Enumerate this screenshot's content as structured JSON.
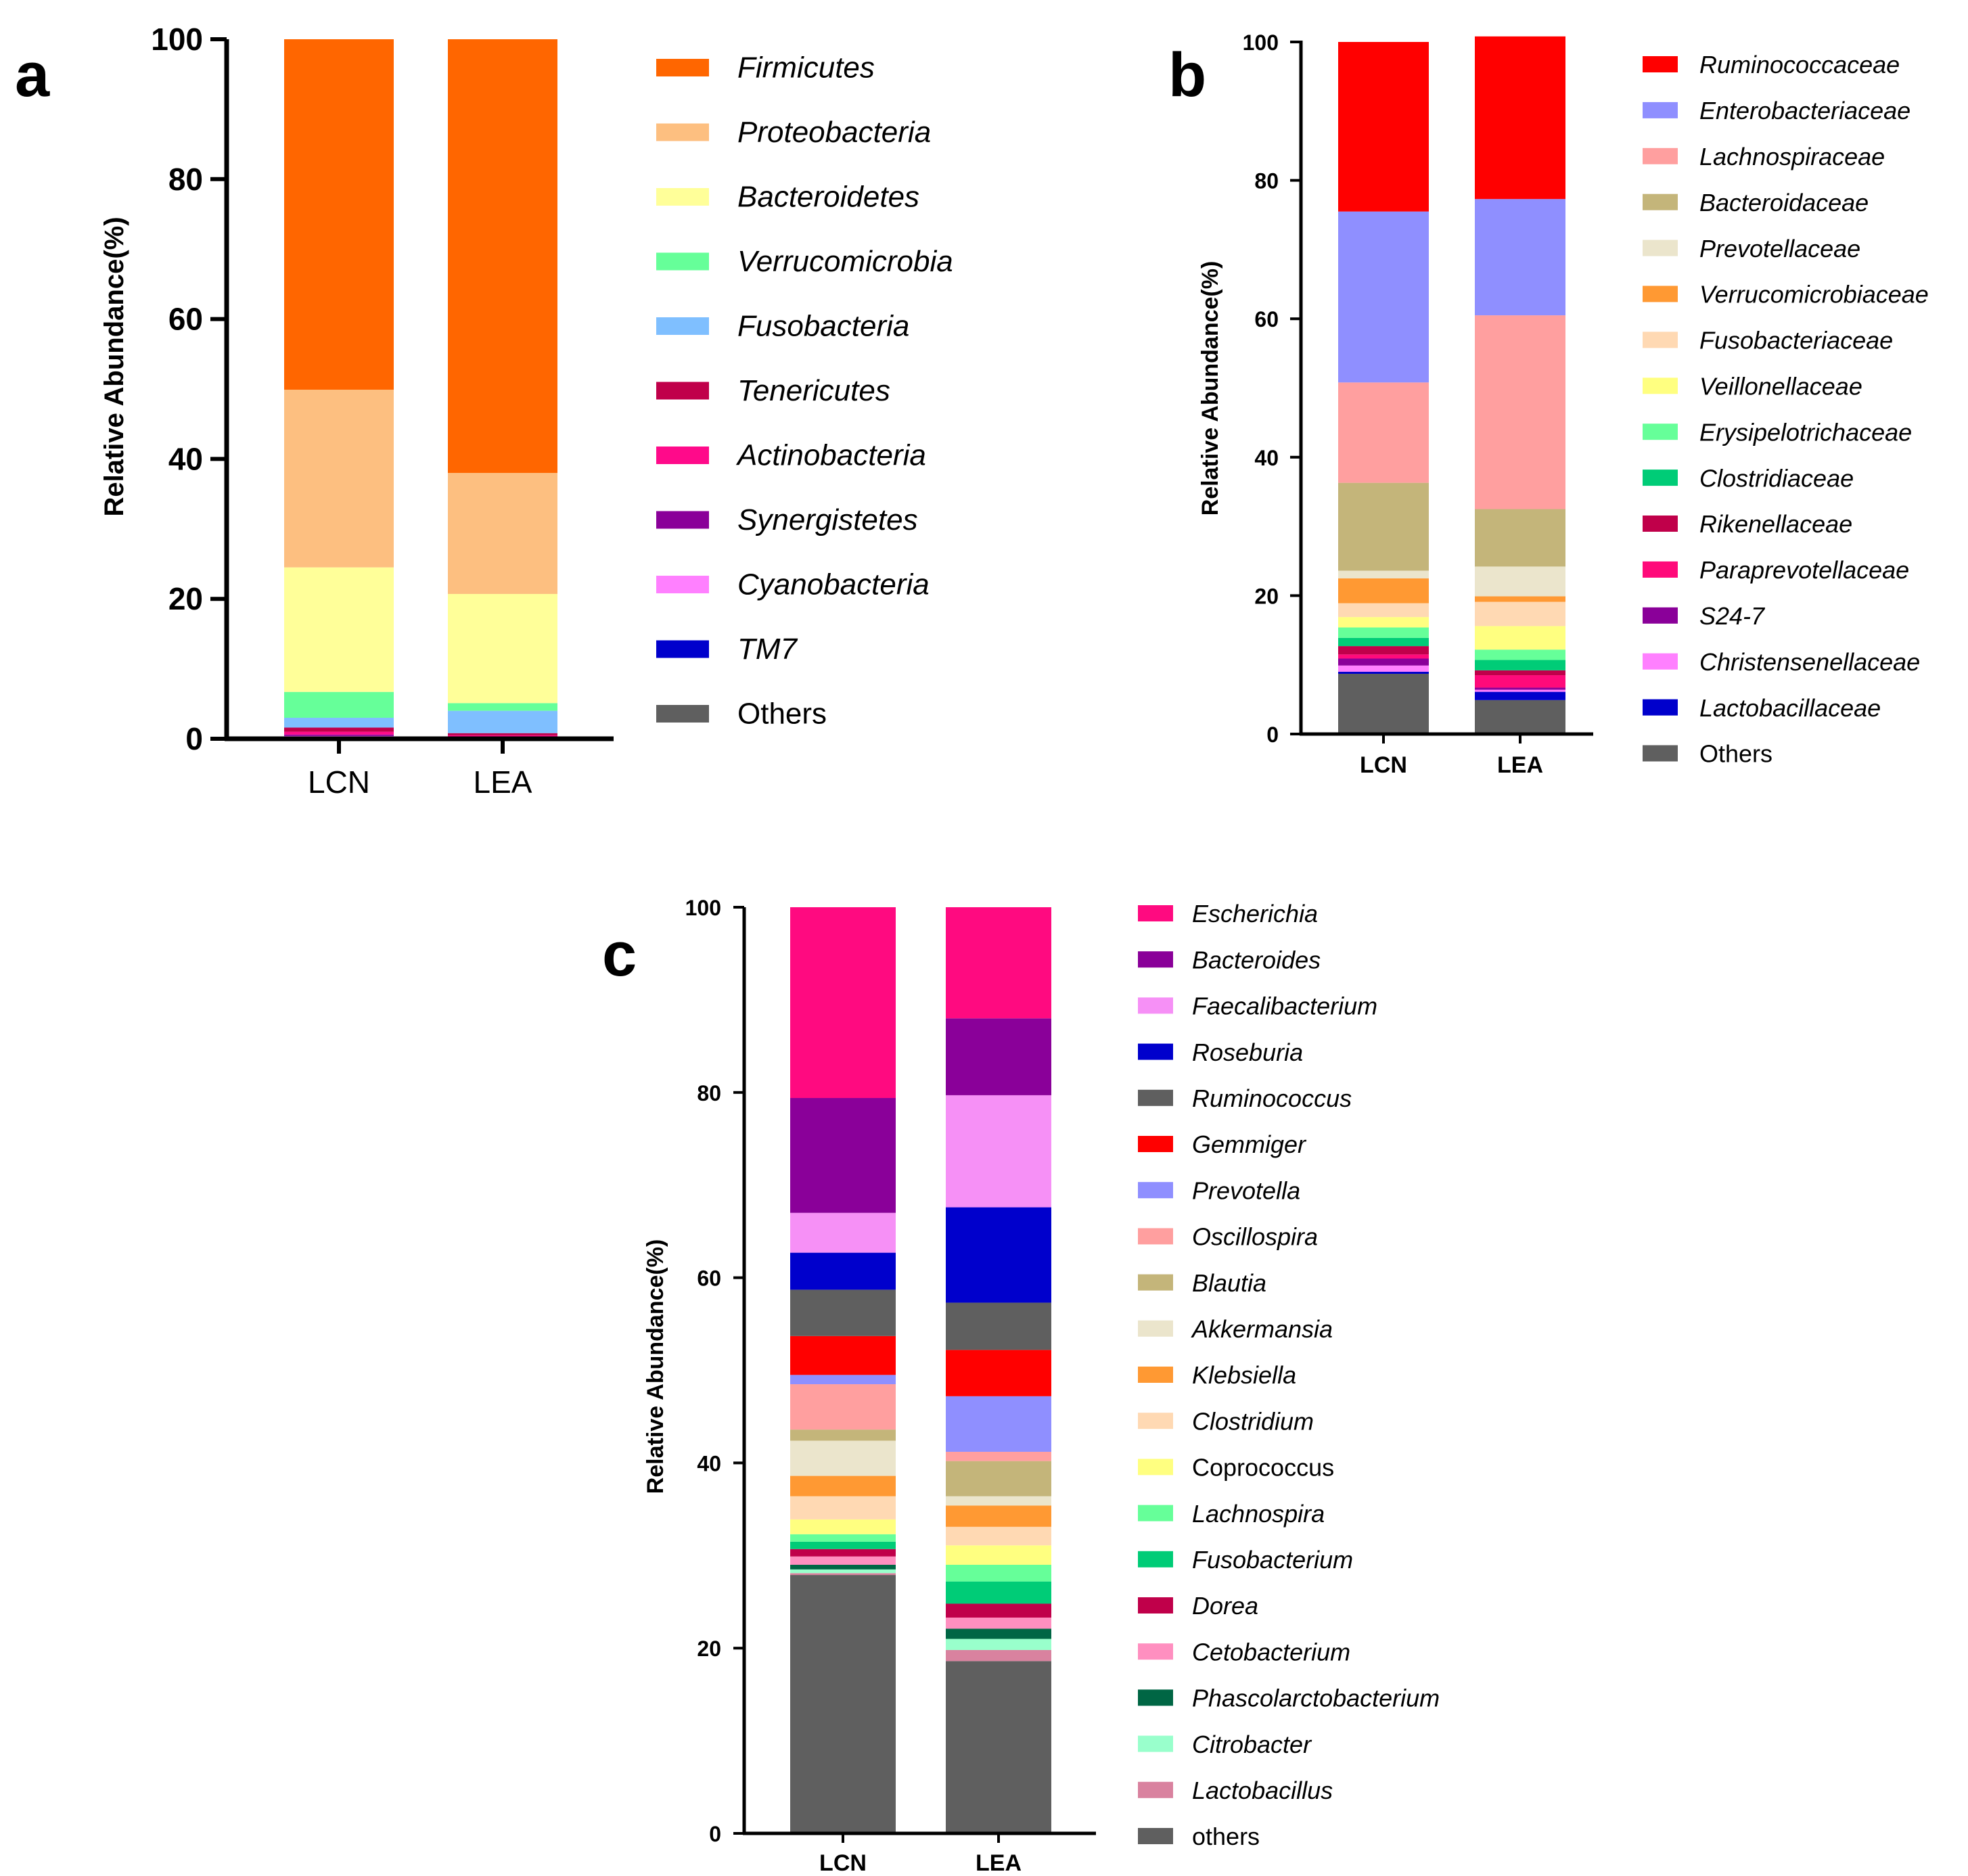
{
  "colors": {
    "axis": "#000000",
    "panel_a": [
      "#ff6600",
      "#fdbf80",
      "#ffff99",
      "#66ff99",
      "#7fbfff",
      "#c0004a",
      "#ff0a8a",
      "#8a0099",
      "#ff80ff",
      "#0000cc",
      "#5f5f5f"
    ],
    "panel_b": [
      "#ff0000",
      "#8f8fff",
      "#ff9f9f",
      "#c4b57a",
      "#ebe5cc",
      "#ff9933",
      "#ffd9b3",
      "#ffff80",
      "#66ff99",
      "#00cc77",
      "#c0004a",
      "#ff0a7a",
      "#8a0099",
      "#ff80ff",
      "#0000cc",
      "#5f5f5f"
    ],
    "panel_c": [
      "#ff0a80",
      "#8a0099",
      "#f690f6",
      "#0000cc",
      "#5f5f5f",
      "#ff0000",
      "#8f8fff",
      "#ff9f9f",
      "#c4b57a",
      "#ebe5cc",
      "#ff9933",
      "#ffd9b3",
      "#ffff80",
      "#66ff99",
      "#00cc77",
      "#c0004a",
      "#ff8fc0",
      "#006644",
      "#99ffcc",
      "#d9829f",
      "#5f5f5f"
    ]
  },
  "chart_data": [
    {
      "panel": "a",
      "type": "bar",
      "stacked": true,
      "ylabel": "Relative Abundance(%)",
      "ylim": [
        0,
        100
      ],
      "yticks": [
        "0",
        "20",
        "40",
        "60",
        "80",
        "100"
      ],
      "categories": [
        "LCN",
        "LEA"
      ],
      "legend_italic": [
        true,
        true,
        true,
        true,
        true,
        true,
        true,
        true,
        true,
        true,
        false
      ],
      "series": [
        {
          "name": "Firmicutes",
          "values": [
            50.1,
            62.0
          ]
        },
        {
          "name": "Proteobacteria",
          "values": [
            25.4,
            17.3
          ]
        },
        {
          "name": "Bacteroidetes",
          "values": [
            17.8,
            15.6
          ]
        },
        {
          "name": "Verrucomicrobia",
          "values": [
            3.7,
            1.1
          ]
        },
        {
          "name": "Fusobacteria",
          "values": [
            1.4,
            3.2
          ]
        },
        {
          "name": "Tenericutes",
          "values": [
            0.6,
            0.3
          ]
        },
        {
          "name": "Actinobacteria",
          "values": [
            0.4,
            0.2
          ]
        },
        {
          "name": "Synergistetes",
          "values": [
            0.2,
            0.1
          ]
        },
        {
          "name": "Cyanobacteria",
          "values": [
            0.1,
            0.1
          ]
        },
        {
          "name": "TM7",
          "values": [
            0.1,
            0.1
          ]
        },
        {
          "name": "Others",
          "values": [
            0.2,
            0.0
          ]
        }
      ]
    },
    {
      "panel": "b",
      "type": "bar",
      "stacked": true,
      "ylabel": "Relative Abundance(%)",
      "ylim": [
        0,
        100
      ],
      "yticks": [
        "0",
        "20",
        "40",
        "60",
        "80",
        "100"
      ],
      "categories": [
        "LCN",
        "LEA"
      ],
      "legend_italic": [
        true,
        true,
        true,
        true,
        true,
        true,
        true,
        true,
        true,
        true,
        true,
        true,
        true,
        true,
        true,
        false
      ],
      "series": [
        {
          "name": "Ruminococcaceae",
          "values": [
            24.5,
            23.5
          ]
        },
        {
          "name": "Enterobacteriaceae",
          "values": [
            24.7,
            16.8
          ]
        },
        {
          "name": "Lachnospiraceae",
          "values": [
            14.5,
            28.0
          ]
        },
        {
          "name": "Bacteroidaceae",
          "values": [
            12.7,
            8.3
          ]
        },
        {
          "name": "Prevotellaceae",
          "values": [
            1.1,
            4.3
          ]
        },
        {
          "name": "Verrucomicrobiaceae",
          "values": [
            3.6,
            0.8
          ]
        },
        {
          "name": "Fusobacteriaceae",
          "values": [
            2.0,
            3.5
          ]
        },
        {
          "name": "Veillonellaceae",
          "values": [
            1.5,
            3.4
          ]
        },
        {
          "name": "Erysipelotrichaceae",
          "values": [
            1.5,
            1.5
          ]
        },
        {
          "name": "Clostridiaceae",
          "values": [
            1.2,
            1.5
          ]
        },
        {
          "name": "Rikenellaceae",
          "values": [
            1.2,
            0.7
          ]
        },
        {
          "name": "Paraprevotellaceae",
          "values": [
            0.6,
            1.8
          ]
        },
        {
          "name": "S24-7",
          "values": [
            1.0,
            0.3
          ]
        },
        {
          "name": "Christensenellaceae",
          "values": [
            0.9,
            0.3
          ]
        },
        {
          "name": "Lactobacillaceae",
          "values": [
            0.3,
            1.2
          ]
        },
        {
          "name": "Others",
          "values": [
            8.7,
            4.9
          ]
        }
      ]
    },
    {
      "panel": "c",
      "type": "bar",
      "stacked": true,
      "ylabel": "Relative Abundance(%)",
      "ylim": [
        0,
        100
      ],
      "yticks": [
        "0",
        "20",
        "40",
        "60",
        "80",
        "100"
      ],
      "categories": [
        "LCN",
        "LEA"
      ],
      "legend_italic": [
        true,
        true,
        true,
        true,
        true,
        true,
        true,
        true,
        true,
        true,
        true,
        true,
        false,
        true,
        true,
        true,
        true,
        true,
        true,
        true,
        false
      ],
      "series": [
        {
          "name": "Escherichia",
          "values": [
            20.6,
            12.0
          ]
        },
        {
          "name": "Bacteroides",
          "values": [
            12.4,
            8.3
          ]
        },
        {
          "name": "Faecalibacterium",
          "values": [
            4.3,
            12.1
          ]
        },
        {
          "name": "Roseburia",
          "values": [
            4.0,
            10.3
          ]
        },
        {
          "name": "Ruminococcus",
          "values": [
            5.0,
            5.1
          ]
        },
        {
          "name": "Gemmiger",
          "values": [
            4.2,
            5.0
          ]
        },
        {
          "name": "Prevotella",
          "values": [
            1.0,
            6.0
          ]
        },
        {
          "name": "Oscillospira",
          "values": [
            4.9,
            1.0
          ]
        },
        {
          "name": "Blautia",
          "values": [
            1.2,
            3.8
          ]
        },
        {
          "name": "Akkermansia",
          "values": [
            3.8,
            1.0
          ]
        },
        {
          "name": "Klebsiella",
          "values": [
            2.2,
            2.3
          ]
        },
        {
          "name": "Clostridium",
          "values": [
            2.5,
            2.0
          ]
        },
        {
          "name": "Coprococcus",
          "values": [
            1.6,
            2.1
          ]
        },
        {
          "name": "Lachnospira",
          "values": [
            0.8,
            1.8
          ]
        },
        {
          "name": "Fusobacterium",
          "values": [
            0.8,
            2.4
          ]
        },
        {
          "name": "Dorea",
          "values": [
            0.8,
            1.5
          ]
        },
        {
          "name": "Cetobacterium",
          "values": [
            0.9,
            1.2
          ]
        },
        {
          "name": "Phascolarctobacterium",
          "values": [
            0.5,
            1.1
          ]
        },
        {
          "name": "Citrobacter",
          "values": [
            0.4,
            1.2
          ]
        },
        {
          "name": "Lactobacillus",
          "values": [
            0.2,
            1.2
          ]
        },
        {
          "name": "others",
          "values": [
            27.9,
            18.6
          ]
        }
      ]
    }
  ]
}
